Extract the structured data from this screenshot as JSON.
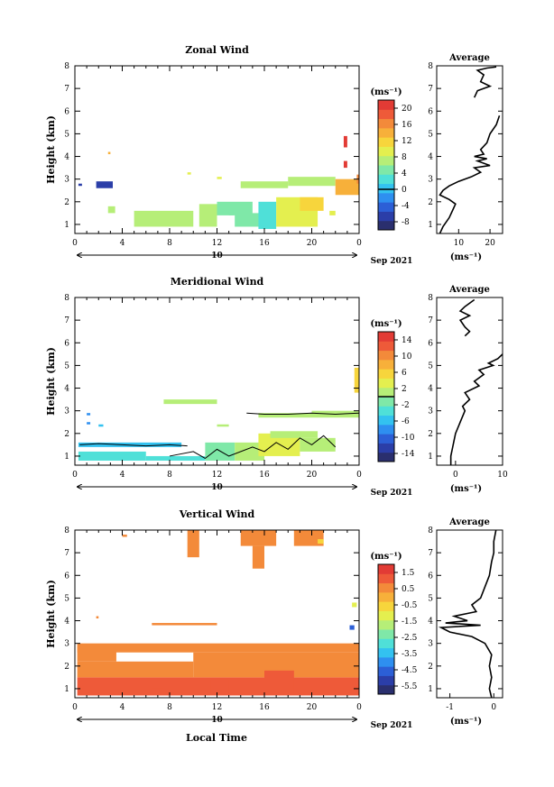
{
  "page": {
    "date_label": "Sep 2021",
    "bottom_xlabel": "Local Time"
  },
  "colors": {
    "colormap": [
      "#2a2f6e",
      "#2b3ea8",
      "#2c5fd6",
      "#2e8ff0",
      "#33c2f0",
      "#4fe0d8",
      "#7fe8a8",
      "#b6ee78",
      "#e4ef4f",
      "#f7d53c",
      "#f7b03a",
      "#f38a3a",
      "#ee5a39",
      "#e23b35"
    ]
  },
  "chart_data": [
    {
      "type": "heatmap",
      "id": "zonal",
      "title": "Zonal Wind",
      "ylabel": "Height (km)",
      "xlim": [
        0,
        24
      ],
      "ylim": [
        0.6,
        8.0
      ],
      "xticks": [
        "0",
        "4",
        "8",
        "12",
        "16",
        "20",
        "0"
      ],
      "yticks": [
        "1",
        "2",
        "3",
        "4",
        "5",
        "6",
        "7",
        "8"
      ],
      "day_label": "10",
      "colorbar": {
        "unit": "(ms⁻¹)",
        "range": [
          -10,
          22
        ],
        "ticks": [
          "20",
          "16",
          "12",
          "8",
          "4",
          "0",
          "-4",
          "-8"
        ],
        "zero_line": 0
      },
      "patches": [
        {
          "x0": 0.3,
          "x1": 0.6,
          "y0": 2.7,
          "y1": 2.8,
          "v": -6
        },
        {
          "x0": 1.8,
          "x1": 3.2,
          "y0": 2.6,
          "y1": 2.9,
          "v": -7
        },
        {
          "x0": 2.8,
          "x1": 3.0,
          "y0": 4.1,
          "y1": 4.2,
          "v": 14
        },
        {
          "x0": 2.8,
          "x1": 3.4,
          "y0": 1.5,
          "y1": 1.8,
          "v": 6
        },
        {
          "x0": 5.0,
          "x1": 10.0,
          "y0": 0.9,
          "y1": 1.6,
          "v": 8
        },
        {
          "x0": 7.5,
          "x1": 9.5,
          "y0": 1.1,
          "y1": 1.4,
          "v": 6
        },
        {
          "x0": 10.5,
          "x1": 12.0,
          "y0": 0.9,
          "y1": 1.9,
          "v": 7
        },
        {
          "x0": 12.0,
          "x1": 15.0,
          "y0": 1.4,
          "y1": 2.0,
          "v": 5
        },
        {
          "x0": 13.5,
          "x1": 16.0,
          "y0": 0.9,
          "y1": 1.5,
          "v": 4
        },
        {
          "x0": 15.5,
          "x1": 17.0,
          "y0": 0.8,
          "y1": 2.0,
          "v": 3
        },
        {
          "x0": 17.0,
          "x1": 20.5,
          "y0": 0.9,
          "y1": 2.2,
          "v": 9
        },
        {
          "x0": 19.0,
          "x1": 21.0,
          "y0": 1.6,
          "y1": 2.2,
          "v": 11
        },
        {
          "x0": 14.0,
          "x1": 18.0,
          "y0": 2.6,
          "y1": 2.9,
          "v": 7
        },
        {
          "x0": 18.0,
          "x1": 22.0,
          "y0": 2.7,
          "y1": 3.1,
          "v": 8
        },
        {
          "x0": 22.0,
          "x1": 24.0,
          "y0": 2.3,
          "y1": 3.0,
          "v": 14
        },
        {
          "x0": 23.8,
          "x1": 24.0,
          "y0": 2.8,
          "y1": 3.2,
          "v": 17
        },
        {
          "x0": 22.7,
          "x1": 23.0,
          "y0": 4.4,
          "y1": 4.9,
          "v": 21
        },
        {
          "x0": 22.7,
          "x1": 23.0,
          "y0": 3.5,
          "y1": 3.8,
          "v": 21
        },
        {
          "x0": 9.5,
          "x1": 9.8,
          "y0": 3.2,
          "y1": 3.3,
          "v": 10
        },
        {
          "x0": 12.0,
          "x1": 12.4,
          "y0": 3.0,
          "y1": 3.1,
          "v": 9
        },
        {
          "x0": 13.0,
          "x1": 13.4,
          "y0": 1.4,
          "y1": 1.6,
          "v": 5
        },
        {
          "x0": 21.5,
          "x1": 22.0,
          "y0": 1.4,
          "y1": 1.6,
          "v": 10
        }
      ],
      "profile": {
        "title": "Average",
        "xlabel": "(ms⁻¹)",
        "xlim": [
          3,
          24
        ],
        "xticks": [
          "10",
          "20"
        ],
        "xtick_values": [
          10,
          20
        ],
        "points": [
          [
            4,
            0.6
          ],
          [
            5,
            0.9
          ],
          [
            7,
            1.3
          ],
          [
            8,
            1.6
          ],
          [
            9,
            1.9
          ],
          [
            7,
            2.1
          ],
          [
            4,
            2.3
          ],
          [
            5,
            2.5
          ],
          [
            7,
            2.7
          ],
          [
            10,
            2.9
          ],
          [
            14,
            3.1
          ],
          [
            17,
            3.3
          ],
          [
            15,
            3.5
          ],
          [
            20,
            3.6
          ],
          [
            16,
            3.8
          ],
          [
            19,
            3.9
          ],
          [
            15,
            4.0
          ],
          [
            18,
            4.1
          ],
          [
            17,
            4.3
          ],
          [
            19,
            4.6
          ],
          [
            20,
            5.0
          ],
          [
            22,
            5.4
          ],
          [
            23,
            5.8
          ]
        ],
        "points2": [
          [
            15,
            6.6
          ],
          [
            16,
            6.9
          ],
          [
            18,
            7.0
          ],
          [
            20,
            7.1
          ],
          [
            17,
            7.3
          ],
          [
            18,
            7.6
          ],
          [
            16,
            7.8
          ],
          [
            19,
            7.9
          ],
          [
            22,
            7.95
          ]
        ]
      }
    },
    {
      "type": "heatmap",
      "id": "meridional",
      "title": "Meridional Wind",
      "ylabel": "Height (km)",
      "xlim": [
        0,
        24
      ],
      "ylim": [
        0.6,
        8.0
      ],
      "xticks": [
        "0",
        "4",
        "8",
        "12",
        "16",
        "20",
        "0"
      ],
      "yticks": [
        "1",
        "2",
        "3",
        "4",
        "5",
        "6",
        "7",
        "8"
      ],
      "day_label": "10",
      "colorbar": {
        "unit": "(ms⁻¹)",
        "range": [
          -16,
          16
        ],
        "ticks": [
          "14",
          "10",
          "6",
          "2",
          "-2",
          "-6",
          "-10",
          "-14"
        ],
        "zero_line": 0
      },
      "patches": [
        {
          "x0": 0.3,
          "x1": 9.0,
          "y0": 1.4,
          "y1": 1.6,
          "v": -6
        },
        {
          "x0": 0.3,
          "x1": 6.0,
          "y0": 0.8,
          "y1": 1.2,
          "v": -4
        },
        {
          "x0": 6.0,
          "x1": 11.0,
          "y0": 0.8,
          "y1": 1.0,
          "v": -3
        },
        {
          "x0": 11.0,
          "x1": 13.5,
          "y0": 0.8,
          "y1": 1.6,
          "v": -1
        },
        {
          "x0": 13.5,
          "x1": 16.0,
          "y0": 0.8,
          "y1": 1.6,
          "v": 2
        },
        {
          "x0": 15.5,
          "x1": 19.0,
          "y0": 1.0,
          "y1": 2.0,
          "v": 4
        },
        {
          "x0": 16.5,
          "x1": 20.5,
          "y0": 1.8,
          "y1": 2.1,
          "v": 1
        },
        {
          "x0": 19.0,
          "x1": 22.0,
          "y0": 1.2,
          "y1": 1.8,
          "v": 0
        },
        {
          "x0": 15.5,
          "x1": 20.0,
          "y0": 2.7,
          "y1": 2.9,
          "v": 0
        },
        {
          "x0": 20.0,
          "x1": 24.0,
          "y0": 2.7,
          "y1": 3.0,
          "v": 1
        },
        {
          "x0": 23.6,
          "x1": 24.0,
          "y0": 3.8,
          "y1": 4.9,
          "v": 5
        },
        {
          "x0": 7.5,
          "x1": 12.0,
          "y0": 3.3,
          "y1": 3.5,
          "v": 2
        },
        {
          "x0": 1.0,
          "x1": 1.3,
          "y0": 2.4,
          "y1": 2.5,
          "v": -7
        },
        {
          "x0": 1.0,
          "x1": 1.3,
          "y0": 2.8,
          "y1": 2.9,
          "v": -9
        },
        {
          "x0": 2.0,
          "x1": 2.4,
          "y0": 2.3,
          "y1": 2.4,
          "v": -5
        },
        {
          "x0": 12.0,
          "x1": 13.0,
          "y0": 2.3,
          "y1": 2.4,
          "v": 1
        }
      ],
      "zero_contours": [
        [
          [
            0.4,
            1.5
          ],
          [
            2,
            1.55
          ],
          [
            4,
            1.5
          ],
          [
            6,
            1.45
          ],
          [
            8,
            1.5
          ],
          [
            9.5,
            1.45
          ]
        ],
        [
          [
            14.5,
            2.9
          ],
          [
            16,
            2.85
          ],
          [
            18,
            2.85
          ],
          [
            20,
            2.9
          ],
          [
            22,
            2.85
          ],
          [
            24,
            2.9
          ]
        ],
        [
          [
            8,
            1.0
          ],
          [
            10,
            1.2
          ],
          [
            11,
            0.9
          ],
          [
            12,
            1.3
          ],
          [
            13,
            1.0
          ],
          [
            15,
            1.4
          ],
          [
            16,
            1.2
          ],
          [
            17,
            1.6
          ],
          [
            18,
            1.3
          ],
          [
            19,
            1.8
          ],
          [
            20,
            1.5
          ],
          [
            21,
            1.9
          ],
          [
            22,
            1.4
          ]
        ]
      ],
      "profile": {
        "title": "Average",
        "xlabel": "(ms⁻¹)",
        "xlim": [
          -4,
          10
        ],
        "xticks": [
          "0",
          "10"
        ],
        "xtick_values": [
          0,
          10
        ],
        "points": [
          [
            -1,
            0.6
          ],
          [
            -1,
            1.0
          ],
          [
            -0.5,
            1.5
          ],
          [
            0,
            2.0
          ],
          [
            1,
            2.5
          ],
          [
            2,
            3.0
          ],
          [
            1.5,
            3.2
          ],
          [
            3,
            3.5
          ],
          [
            2,
            3.8
          ],
          [
            5,
            4.1
          ],
          [
            4,
            4.3
          ],
          [
            6,
            4.6
          ],
          [
            5,
            4.8
          ],
          [
            8,
            5.0
          ],
          [
            7,
            5.1
          ],
          [
            9,
            5.3
          ],
          [
            10,
            5.5
          ]
        ],
        "points2": [
          [
            2,
            6.3
          ],
          [
            3,
            6.5
          ],
          [
            2,
            6.7
          ],
          [
            1,
            7.0
          ],
          [
            3,
            7.2
          ],
          [
            1,
            7.4
          ],
          [
            2,
            7.6
          ],
          [
            4,
            7.9
          ]
        ]
      }
    },
    {
      "type": "heatmap",
      "id": "vertical",
      "title": "Vertical Wind",
      "ylabel": "Height (km)",
      "xlabel": "Local Time",
      "xlim": [
        0,
        24
      ],
      "ylim": [
        0.6,
        8.0
      ],
      "xticks": [
        "0",
        "4",
        "8",
        "12",
        "16",
        "20",
        "0"
      ],
      "yticks": [
        "1",
        "2",
        "3",
        "4",
        "5",
        "6",
        "7",
        "8"
      ],
      "day_label": "10",
      "colorbar": {
        "unit": "(ms⁻¹)",
        "range": [
          -6.0,
          2.0
        ],
        "ticks": [
          "1.5",
          "0.5",
          "-0.5",
          "-1.5",
          "-2.5",
          "-3.5",
          "-4.5",
          "-5.5"
        ],
        "zero_line": null
      },
      "patches": [
        {
          "x0": 0.2,
          "x1": 24.0,
          "y0": 0.7,
          "y1": 1.5,
          "v": 1.0
        },
        {
          "x0": 0.2,
          "x1": 10.0,
          "y0": 1.5,
          "y1": 2.2,
          "v": 0.7
        },
        {
          "x0": 10.0,
          "x1": 24.0,
          "y0": 1.5,
          "y1": 2.6,
          "v": 0.8
        },
        {
          "x0": 0.2,
          "x1": 24.0,
          "y0": 2.6,
          "y1": 3.0,
          "v": 0.6
        },
        {
          "x0": 0.2,
          "x1": 3.5,
          "y0": 2.2,
          "y1": 2.9,
          "v": 0.7
        },
        {
          "x0": 11.5,
          "x1": 13.0,
          "y0": 0.8,
          "y1": 1.4,
          "v": 1.3
        },
        {
          "x0": 16.0,
          "x1": 18.5,
          "y0": 0.8,
          "y1": 1.8,
          "v": 1.1
        },
        {
          "x0": 6.5,
          "x1": 7.5,
          "y0": 1.0,
          "y1": 1.3,
          "v": 1.2
        },
        {
          "x0": 9.5,
          "x1": 10.5,
          "y0": 6.8,
          "y1": 8.0,
          "v": 0.6
        },
        {
          "x0": 14.0,
          "x1": 17.0,
          "y0": 7.3,
          "y1": 8.0,
          "v": 0.6
        },
        {
          "x0": 15.0,
          "x1": 16.0,
          "y0": 6.3,
          "y1": 7.3,
          "v": 0.6
        },
        {
          "x0": 18.5,
          "x1": 21.0,
          "y0": 7.3,
          "y1": 8.0,
          "v": 0.6
        },
        {
          "x0": 20.5,
          "x1": 21.0,
          "y0": 7.4,
          "y1": 7.6,
          "v": -0.6
        },
        {
          "x0": 23.2,
          "x1": 23.6,
          "y0": 3.6,
          "y1": 3.8,
          "v": -4.5
        },
        {
          "x0": 23.4,
          "x1": 23.8,
          "y0": 4.6,
          "y1": 4.8,
          "v": -1.2
        },
        {
          "x0": 6.5,
          "x1": 12.0,
          "y0": 3.8,
          "y1": 3.9,
          "v": 0.5
        },
        {
          "x0": 4.0,
          "x1": 4.4,
          "y0": 7.7,
          "y1": 7.8,
          "v": 0.5
        },
        {
          "x0": 1.8,
          "x1": 2.0,
          "y0": 4.1,
          "y1": 4.2,
          "v": 0.5
        }
      ],
      "profile": {
        "title": "Average",
        "xlabel": "(ms⁻¹)",
        "xlim": [
          -1.3,
          0.2
        ],
        "xticks": [
          "-1",
          "0"
        ],
        "xtick_values": [
          -1,
          0
        ],
        "points": [
          [
            -0.05,
            0.6
          ],
          [
            -0.1,
            1.0
          ],
          [
            -0.05,
            1.5
          ],
          [
            -0.1,
            2.0
          ],
          [
            -0.05,
            2.5
          ],
          [
            -0.2,
            3.0
          ],
          [
            -0.5,
            3.3
          ],
          [
            -1.0,
            3.5
          ],
          [
            -1.2,
            3.7
          ],
          [
            -0.3,
            3.8
          ],
          [
            -1.1,
            3.9
          ],
          [
            -0.6,
            4.0
          ],
          [
            -0.9,
            4.2
          ],
          [
            -0.4,
            4.4
          ],
          [
            -0.5,
            4.7
          ],
          [
            -0.3,
            5.0
          ],
          [
            -0.2,
            5.5
          ],
          [
            -0.1,
            6.0
          ],
          [
            -0.05,
            6.6
          ],
          [
            0,
            7.0
          ],
          [
            0,
            7.5
          ],
          [
            0.05,
            8.0
          ]
        ]
      }
    }
  ]
}
